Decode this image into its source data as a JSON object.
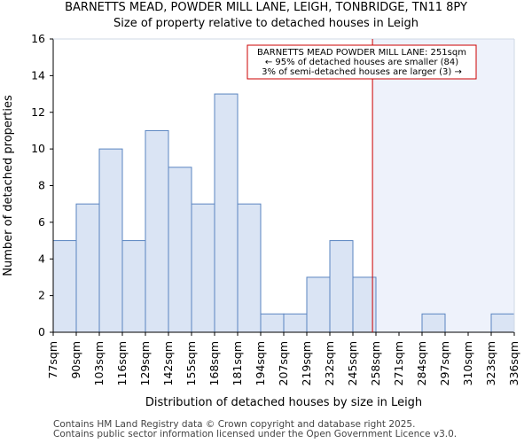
{
  "chart_data": {
    "type": "bar",
    "title": "BARNETTS MEAD, POWDER MILL LANE, LEIGH, TONBRIDGE, TN11 8PY",
    "subtitle": "Size of property relative to detached houses in Leigh",
    "xlabel": "Distribution of detached houses by size in Leigh",
    "ylabel": "Number of detached properties",
    "ylim": [
      0,
      16
    ],
    "yticks": [
      0,
      2,
      4,
      6,
      8,
      10,
      12,
      14,
      16
    ],
    "bin_edges": [
      "77sqm",
      "90sqm",
      "103sqm",
      "116sqm",
      "129sqm",
      "142sqm",
      "155sqm",
      "168sqm",
      "181sqm",
      "194sqm",
      "207sqm",
      "219sqm",
      "232sqm",
      "245sqm",
      "258sqm",
      "271sqm",
      "284sqm",
      "297sqm",
      "310sqm",
      "323sqm",
      "336sqm"
    ],
    "values": [
      5,
      7,
      10,
      5,
      11,
      9,
      7,
      13,
      7,
      1,
      1,
      3,
      5,
      3,
      0,
      0,
      1,
      0,
      0,
      1
    ],
    "marker_bin_position": 13.85,
    "annotation": {
      "line1": "BARNETTS MEAD POWDER MILL LANE: 251sqm",
      "line2": "← 95% of detached houses are smaller (84)",
      "line3": "3% of semi-detached houses are larger (3) →"
    },
    "colors": {
      "bar_fill": "#dae4f4",
      "bar_stroke": "#5a84c0",
      "shade_fill": "#eef2fb",
      "marker": "#cc0000"
    }
  },
  "footer": {
    "line1": "Contains HM Land Registry data © Crown copyright and database right 2025.",
    "line2": "Contains public sector information licensed under the Open Government Licence v3.0."
  }
}
